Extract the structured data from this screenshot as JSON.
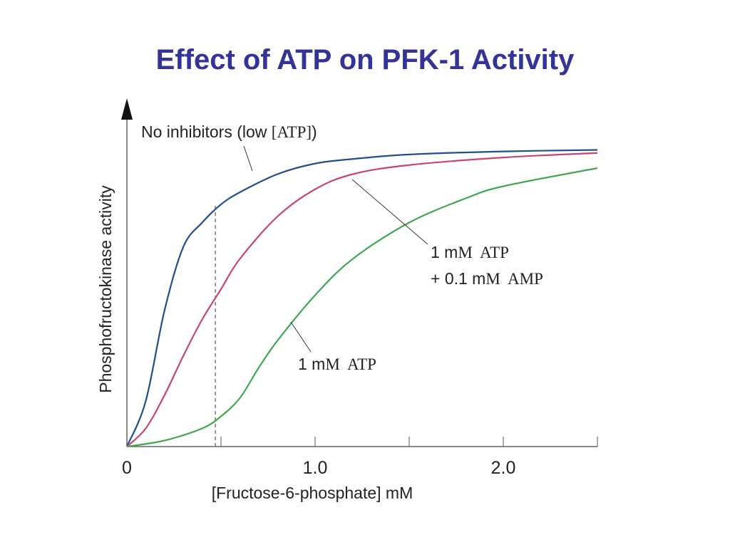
{
  "slide": {
    "title": "Effect of ATP on PFK-1 Activity"
  },
  "chart_data": {
    "type": "line",
    "title": "Effect of ATP on PFK-1 Activity",
    "xlabel": "[Fructose-6-phosphate] mM",
    "ylabel": "Phosphofructokinase activity",
    "xlim": [
      0,
      2.5
    ],
    "ylim": [
      0,
      1
    ],
    "x_ticks": [
      0,
      0.5,
      1.0,
      1.5,
      2.0,
      2.5
    ],
    "x_tick_labels": [
      "0",
      "",
      "1.0",
      "",
      "2.0",
      ""
    ],
    "y_ticks_shown": false,
    "grid": false,
    "legend": "none",
    "reference_line": {
      "x": 0.47,
      "style": "dashed"
    },
    "series": [
      {
        "color": "#1f4f8f",
        "x": [
          0,
          0.1,
          0.2,
          0.3,
          0.4,
          0.5,
          0.6,
          0.8,
          1.0,
          1.2,
          1.5,
          2.0,
          2.5
        ],
        "y": [
          0,
          0.15,
          0.45,
          0.66,
          0.74,
          0.8,
          0.84,
          0.9,
          0.935,
          0.95,
          0.965,
          0.975,
          0.98
        ]
      },
      {
        "color": "#c8466e",
        "x": [
          0,
          0.1,
          0.2,
          0.3,
          0.4,
          0.5,
          0.6,
          0.8,
          1.0,
          1.2,
          1.5,
          2.0,
          2.5
        ],
        "y": [
          0,
          0.06,
          0.17,
          0.3,
          0.42,
          0.52,
          0.62,
          0.76,
          0.85,
          0.9,
          0.93,
          0.955,
          0.97
        ]
      },
      {
        "color": "#3fa84e",
        "x": [
          0,
          0.2,
          0.4,
          0.5,
          0.6,
          0.7,
          0.8,
          1.0,
          1.2,
          1.5,
          1.8,
          2.0,
          2.5
        ],
        "y": [
          0,
          0.02,
          0.06,
          0.1,
          0.16,
          0.26,
          0.35,
          0.5,
          0.62,
          0.74,
          0.82,
          0.86,
          0.92
        ]
      }
    ],
    "annotations": [
      {
        "name": "label-no-inhibitors",
        "parts": [
          {
            "text": "No inhibitors (low ",
            "font": "sans"
          },
          {
            "text": "[ATP]",
            "font": "serif"
          },
          {
            "text": ")",
            "font": "sans"
          }
        ]
      },
      {
        "name": "label-atp-amp-line1",
        "parts": [
          {
            "text": "1 m",
            "font": "sans"
          },
          {
            "text": "M  ATP",
            "font": "serif"
          }
        ]
      },
      {
        "name": "label-atp-amp-line2",
        "parts": [
          {
            "text": "+ 0.1 m",
            "font": "sans"
          },
          {
            "text": "M  AMP",
            "font": "serif"
          }
        ]
      },
      {
        "name": "label-atp",
        "parts": [
          {
            "text": "1 m",
            "font": "sans"
          },
          {
            "text": "M  ATP",
            "font": "serif"
          }
        ]
      }
    ]
  }
}
